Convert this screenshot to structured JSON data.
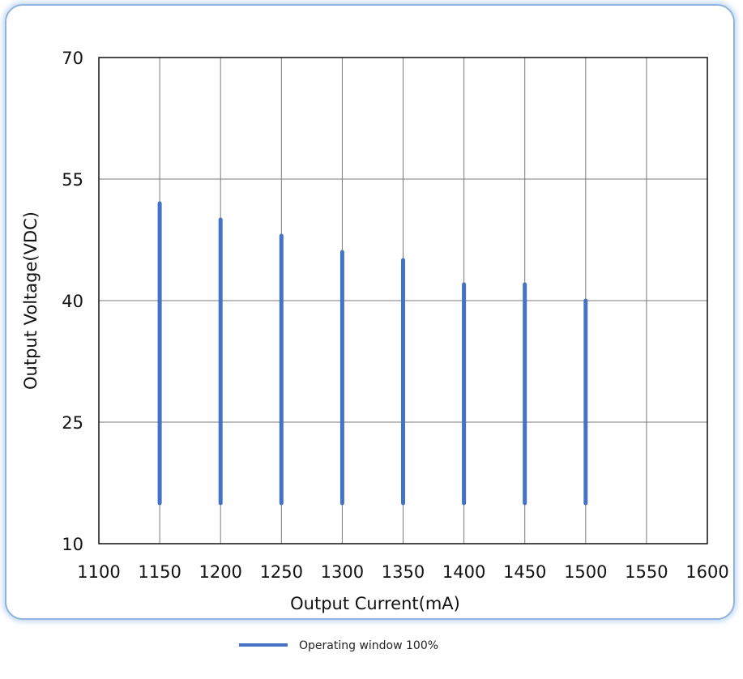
{
  "chart_data": {
    "type": "bar",
    "xlabel": "Output Current(mA)",
    "ylabel": "Output Voltage(VDC)",
    "xlim": [
      1100,
      1600
    ],
    "ylim": [
      10,
      70
    ],
    "x_ticks": [
      1100,
      1150,
      1200,
      1250,
      1300,
      1350,
      1400,
      1450,
      1500,
      1550,
      1600
    ],
    "y_ticks": [
      10,
      25,
      40,
      55,
      70
    ],
    "grid": true,
    "legend_position": "bottom",
    "series": [
      {
        "name": "Operating window 100%",
        "color": "#4472c4",
        "x": [
          1150,
          1200,
          1250,
          1300,
          1350,
          1400,
          1450,
          1500
        ],
        "y_low": [
          15,
          15,
          15,
          15,
          15,
          15,
          15,
          15
        ],
        "y_high": [
          52,
          50,
          48,
          46,
          45,
          42,
          42,
          40
        ]
      }
    ]
  }
}
